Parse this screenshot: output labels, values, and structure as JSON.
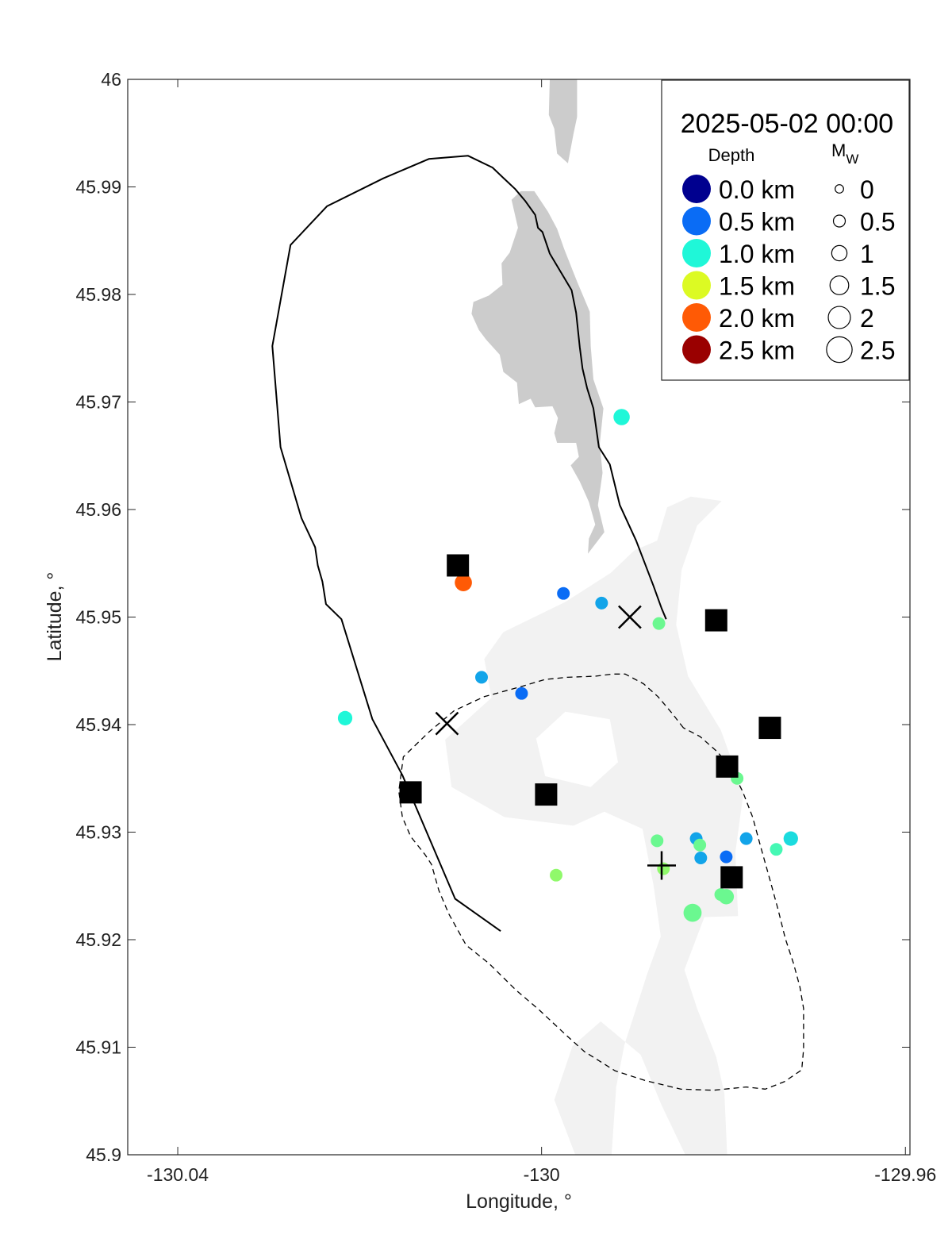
{
  "chart_data": {
    "type": "scatter",
    "title": "",
    "xlabel": "Longitude, °",
    "ylabel": "Latitude, °",
    "xlim": [
      -130.0455,
      -129.9595
    ],
    "ylim": [
      45.9,
      46.0
    ],
    "x_ticks": [
      -130.04,
      -130.0,
      -129.96
    ],
    "x_tick_labels": [
      "-130.04",
      "-130",
      "-129.96"
    ],
    "y_ticks": [
      45.9,
      45.91,
      45.92,
      45.93,
      45.94,
      45.95,
      45.96,
      45.97,
      45.98,
      45.99,
      46.0
    ],
    "y_tick_labels": [
      "45.9",
      "45.91",
      "45.92",
      "45.93",
      "45.94",
      "45.95",
      "45.96",
      "45.97",
      "45.98",
      "45.99",
      "46"
    ],
    "grid": false,
    "legend": {
      "placement": "top-right",
      "title": "2025-05-02 00:00",
      "depth_heading": "Depth",
      "mag_heading": "M",
      "mag_heading_sub": "W",
      "depth_entries": [
        {
          "label": "0.0 km",
          "color": "#00008f"
        },
        {
          "label": "0.5 km",
          "color": "#0a6cf5"
        },
        {
          "label": "1.0 km",
          "color": "#1ff7d8"
        },
        {
          "label": "1.5 km",
          "color": "#dcfa23"
        },
        {
          "label": "2.0 km",
          "color": "#ff5a05"
        },
        {
          "label": "2.5 km",
          "color": "#9a0000"
        }
      ],
      "mag_entries": [
        {
          "label": "0",
          "mw": 0
        },
        {
          "label": "0.5",
          "mw": 0.5
        },
        {
          "label": "1",
          "mw": 1
        },
        {
          "label": "1.5",
          "mw": 1.5
        },
        {
          "label": "2",
          "mw": 2
        },
        {
          "label": "2.5",
          "mw": 2.5
        }
      ]
    },
    "series": [
      {
        "marker": "filled-circle",
        "points": [
          {
            "lon": -130.0216,
            "lat": 45.9406,
            "depth_km": 1.0,
            "mw": 0.6
          },
          {
            "lon": -130.0086,
            "lat": 45.9532,
            "depth_km": 2.0,
            "mw": 0.9
          },
          {
            "lon": -130.0066,
            "lat": 45.9444,
            "depth_km": 0.7,
            "mw": 0.4
          },
          {
            "lon": -130.0022,
            "lat": 45.9429,
            "depth_km": 0.5,
            "mw": 0.4
          },
          {
            "lon": -129.9976,
            "lat": 45.9522,
            "depth_km": 0.5,
            "mw": 0.4
          },
          {
            "lon": -129.9934,
            "lat": 45.9513,
            "depth_km": 0.7,
            "mw": 0.4
          },
          {
            "lon": -129.9912,
            "lat": 45.9686,
            "depth_km": 1.0,
            "mw": 0.8
          },
          {
            "lon": -129.9871,
            "lat": 45.9494,
            "depth_km": 1.2,
            "mw": 0.4
          },
          {
            "lon": -129.9984,
            "lat": 45.926,
            "depth_km": 1.3,
            "mw": 0.4
          },
          {
            "lon": -129.9873,
            "lat": 45.9292,
            "depth_km": 1.2,
            "mw": 0.4
          },
          {
            "lon": -129.9866,
            "lat": 45.9266,
            "depth_km": 1.3,
            "mw": 0.4
          },
          {
            "lon": -129.983,
            "lat": 45.9294,
            "depth_km": 0.7,
            "mw": 0.4
          },
          {
            "lon": -129.9826,
            "lat": 45.9288,
            "depth_km": 1.2,
            "mw": 0.4
          },
          {
            "lon": -129.9825,
            "lat": 45.9276,
            "depth_km": 0.7,
            "mw": 0.4
          },
          {
            "lon": -129.9797,
            "lat": 45.9277,
            "depth_km": 0.5,
            "mw": 0.4
          },
          {
            "lon": -129.9775,
            "lat": 45.9294,
            "depth_km": 0.7,
            "mw": 0.4
          },
          {
            "lon": -129.9785,
            "lat": 45.935,
            "depth_km": 1.2,
            "mw": 0.4
          },
          {
            "lon": -129.9803,
            "lat": 45.9242,
            "depth_km": 1.2,
            "mw": 0.4
          },
          {
            "lon": -129.9797,
            "lat": 45.924,
            "depth_km": 1.2,
            "mw": 0.7
          },
          {
            "lon": -129.9834,
            "lat": 45.9225,
            "depth_km": 1.2,
            "mw": 1.0
          },
          {
            "lon": -129.9742,
            "lat": 45.9284,
            "depth_km": 1.1,
            "mw": 0.4
          },
          {
            "lon": -129.9726,
            "lat": 45.9294,
            "depth_km": 0.9,
            "mw": 0.6
          }
        ]
      },
      {
        "marker": "square",
        "points": [
          {
            "lon": -130.0092,
            "lat": 45.9548
          },
          {
            "lon": -129.9808,
            "lat": 45.9497
          },
          {
            "lon": -129.9749,
            "lat": 45.9397
          },
          {
            "lon": -129.9796,
            "lat": 45.9361
          },
          {
            "lon": -130.0144,
            "lat": 45.9337
          },
          {
            "lon": -129.9995,
            "lat": 45.9335
          },
          {
            "lon": -129.9791,
            "lat": 45.9258
          }
        ]
      },
      {
        "marker": "x",
        "points": [
          {
            "lon": -129.9903,
            "lat": 45.95
          },
          {
            "lon": -130.0104,
            "lat": 45.9401
          }
        ]
      },
      {
        "marker": "plus",
        "points": [
          {
            "lon": -129.9868,
            "lat": 45.9269
          }
        ]
      }
    ],
    "outlines": [
      {
        "style": "solid",
        "points": [
          [
            -130.0045,
            45.9208
          ],
          [
            -130.0095,
            45.9238
          ],
          [
            -130.0153,
            45.9353
          ],
          [
            -130.0186,
            45.9405
          ],
          [
            -130.022,
            45.9498
          ],
          [
            -130.0237,
            45.9512
          ],
          [
            -130.0241,
            45.9533
          ],
          [
            -130.0246,
            45.9548
          ],
          [
            -130.0249,
            45.9565
          ],
          [
            -130.0264,
            45.9592
          ],
          [
            -130.0287,
            45.9658
          ],
          [
            -130.0296,
            45.9752
          ],
          [
            -130.0276,
            45.9846
          ],
          [
            -130.0236,
            45.9882
          ],
          [
            -130.0174,
            45.9908
          ],
          [
            -130.0124,
            45.9926
          ],
          [
            -130.0081,
            45.9929
          ],
          [
            -130.0054,
            45.9918
          ],
          [
            -130.0039,
            45.9906
          ],
          [
            -130.0029,
            45.9898
          ],
          [
            -130.0018,
            45.9887
          ],
          [
            -130.0007,
            45.9874
          ],
          [
            -130.0004,
            45.9862
          ],
          [
            -129.9999,
            45.9858
          ],
          [
            -129.9991,
            45.9838
          ],
          [
            -129.9979,
            45.9821
          ],
          [
            -129.9967,
            45.9804
          ],
          [
            -129.9962,
            45.9783
          ],
          [
            -129.9958,
            45.9751
          ],
          [
            -129.9955,
            45.9731
          ],
          [
            -129.995,
            45.9713
          ],
          [
            -129.9943,
            45.9694
          ],
          [
            -129.9941,
            45.9682
          ],
          [
            -129.9937,
            45.9658
          ],
          [
            -129.9925,
            45.9642
          ],
          [
            -129.9914,
            45.9604
          ],
          [
            -129.9896,
            45.9571
          ],
          [
            -129.9877,
            45.9529
          ],
          [
            -129.9868,
            45.9508
          ],
          [
            -129.9863,
            45.9498
          ]
        ]
      },
      {
        "style": "dashed",
        "points": [
          [
            -129.9844,
            45.9397
          ],
          [
            -129.9857,
            45.9411
          ],
          [
            -129.9872,
            45.9426
          ],
          [
            -129.9888,
            45.9438
          ],
          [
            -129.9908,
            45.9447
          ],
          [
            -129.9922,
            45.9447
          ],
          [
            -129.9941,
            45.9445
          ],
          [
            -129.9972,
            45.9444
          ],
          [
            -129.9996,
            45.9442
          ],
          [
            -130.0024,
            45.9435
          ],
          [
            -130.0063,
            45.9426
          ],
          [
            -130.0096,
            45.9413
          ],
          [
            -130.0124,
            45.9393
          ],
          [
            -130.0152,
            45.937
          ],
          [
            -130.0157,
            45.9338
          ],
          [
            -130.0153,
            45.9314
          ],
          [
            -130.0144,
            45.9296
          ],
          [
            -130.0128,
            45.9279
          ],
          [
            -130.0121,
            45.927
          ],
          [
            -130.0113,
            45.9246
          ],
          [
            -130.0102,
            45.9224
          ],
          [
            -130.0083,
            45.9195
          ],
          [
            -130.0058,
            45.9178
          ],
          [
            -130.0028,
            45.9153
          ],
          [
            -130.0003,
            45.9135
          ],
          [
            -129.9974,
            45.9112
          ],
          [
            -129.9953,
            45.9096
          ],
          [
            -129.9919,
            45.9078
          ],
          [
            -129.9886,
            45.9069
          ],
          [
            -129.9847,
            45.9061
          ],
          [
            -129.9811,
            45.906
          ],
          [
            -129.9775,
            45.9063
          ],
          [
            -129.9754,
            45.9061
          ],
          [
            -129.9733,
            45.9068
          ],
          [
            -129.9714,
            45.9079
          ],
          [
            -129.9712,
            45.9098
          ],
          [
            -129.9712,
            45.9136
          ],
          [
            -129.9716,
            45.9156
          ],
          [
            -129.9723,
            45.9178
          ],
          [
            -129.9732,
            45.9201
          ],
          [
            -129.974,
            45.9228
          ],
          [
            -129.9749,
            45.9256
          ],
          [
            -129.9759,
            45.9286
          ],
          [
            -129.9768,
            45.9314
          ],
          [
            -129.9779,
            45.9338
          ],
          [
            -129.9793,
            45.9361
          ],
          [
            -129.9807,
            45.9375
          ],
          [
            -129.9826,
            45.9389
          ],
          [
            -129.9844,
            45.9397
          ]
        ]
      }
    ],
    "landmass": {
      "color": "#cccccc",
      "shapes": [
        [
          [
            -129.9991,
            46.0
          ],
          [
            -129.9961,
            46.0
          ],
          [
            -129.9961,
            45.9965
          ],
          [
            -129.9965,
            45.9949
          ],
          [
            -129.9971,
            45.9922
          ],
          [
            -129.9983,
            45.9931
          ],
          [
            -129.9986,
            45.9954
          ],
          [
            -129.9992,
            45.9967
          ]
        ],
        [
          [
            -130.0033,
            45.9888
          ],
          [
            -130.0026,
            45.9862
          ],
          [
            -130.0035,
            45.9839
          ],
          [
            -130.0044,
            45.9829
          ],
          [
            -130.0043,
            45.9809
          ],
          [
            -130.0058,
            45.9799
          ],
          [
            -130.0075,
            45.9793
          ],
          [
            -130.0077,
            45.9782
          ],
          [
            -130.0069,
            45.9767
          ],
          [
            -130.0061,
            45.9758
          ],
          [
            -130.0046,
            45.9744
          ],
          [
            -130.0042,
            45.9728
          ],
          [
            -130.0027,
            45.9718
          ],
          [
            -130.0025,
            45.9698
          ],
          [
            -130.0012,
            45.9703
          ],
          [
            -130.0007,
            45.9695
          ],
          [
            -129.9988,
            45.9696
          ],
          [
            -129.9982,
            45.9685
          ],
          [
            -129.9986,
            45.9671
          ],
          [
            -129.9983,
            45.9662
          ],
          [
            -129.9962,
            45.9662
          ],
          [
            -129.9959,
            45.9649
          ],
          [
            -129.9968,
            45.9641
          ],
          [
            -129.9958,
            45.9626
          ],
          [
            -129.9948,
            45.9607
          ],
          [
            -129.9941,
            45.9586
          ],
          [
            -129.9948,
            45.9573
          ],
          [
            -129.9949,
            45.9559
          ],
          [
            -129.9931,
            45.9579
          ],
          [
            -129.9938,
            45.9604
          ],
          [
            -129.9933,
            45.9634
          ],
          [
            -129.9936,
            45.9661
          ],
          [
            -129.9932,
            45.9694
          ],
          [
            -129.9943,
            45.9721
          ],
          [
            -129.9946,
            45.9752
          ],
          [
            -129.9947,
            45.9784
          ],
          [
            -129.9961,
            45.9812
          ],
          [
            -129.9975,
            45.9842
          ],
          [
            -129.9983,
            45.9861
          ],
          [
            -129.9993,
            45.9877
          ],
          [
            -130.0008,
            45.9896
          ],
          [
            -130.0023,
            45.9896
          ]
        ]
      ]
    },
    "bathymetry": {
      "color": "#f2f2f2",
      "shapes": [
        [
          [
            -130.0042,
            45.9486
          ],
          [
            -129.9974,
            45.9514
          ],
          [
            -129.9924,
            45.9541
          ],
          [
            -129.9898,
            45.9562
          ],
          [
            -129.9873,
            45.9571
          ],
          [
            -129.9862,
            45.9602
          ],
          [
            -129.9836,
            45.9612
          ],
          [
            -129.9802,
            45.9608
          ],
          [
            -129.9829,
            45.9585
          ],
          [
            -129.9846,
            45.9544
          ],
          [
            -129.9852,
            45.9493
          ],
          [
            -129.9839,
            45.9445
          ],
          [
            -129.9803,
            45.9395
          ],
          [
            -129.9778,
            45.9337
          ],
          [
            -129.9787,
            45.9281
          ],
          [
            -129.9784,
            45.9222
          ],
          [
            -129.9821,
            45.9221
          ],
          [
            -129.9843,
            45.9172
          ],
          [
            -129.9829,
            45.9136
          ],
          [
            -129.9808,
            45.9091
          ],
          [
            -129.9799,
            45.9057
          ],
          [
            -129.9796,
            45.9
          ],
          [
            -129.9842,
            45.9
          ],
          [
            -129.9868,
            45.9046
          ],
          [
            -129.9891,
            45.9093
          ],
          [
            -129.9935,
            45.9124
          ],
          [
            -129.9966,
            45.9101
          ],
          [
            -129.9986,
            45.9051
          ],
          [
            -129.9963,
            45.9
          ],
          [
            -129.9923,
            45.9
          ],
          [
            -129.9918,
            45.9063
          ],
          [
            -129.9909,
            45.9102
          ],
          [
            -129.9884,
            45.9168
          ],
          [
            -129.9869,
            45.9203
          ],
          [
            -129.9877,
            45.9251
          ],
          [
            -129.9889,
            45.9303
          ],
          [
            -129.9931,
            45.9319
          ],
          [
            -129.9965,
            45.9306
          ],
          [
            -130.0041,
            45.9314
          ],
          [
            -130.0099,
            45.9342
          ],
          [
            -130.0106,
            45.9386
          ],
          [
            -130.0055,
            45.9425
          ],
          [
            -130.0063,
            45.9461
          ]
        ]
      ],
      "holes": [
        [
          [
            -129.9974,
            45.9412
          ],
          [
            -129.9925,
            45.9405
          ],
          [
            -129.9916,
            45.9365
          ],
          [
            -129.9946,
            45.9342
          ],
          [
            -129.9996,
            45.9352
          ],
          [
            -130.0006,
            45.9387
          ]
        ]
      ]
    }
  }
}
